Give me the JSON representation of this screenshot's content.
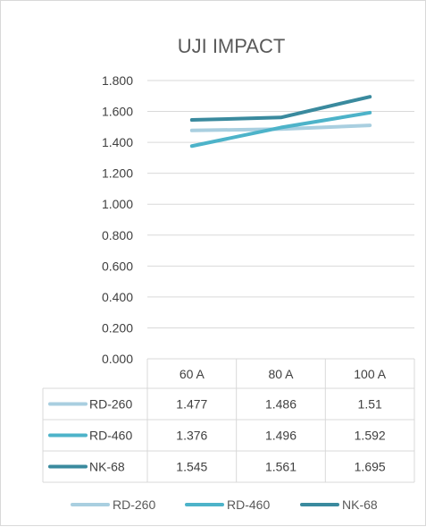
{
  "colors": {
    "RD-260": "#a9cfe0",
    "RD-460": "#4db3c9",
    "NK-68": "#3a8a9e",
    "grid": "#d9d9d9",
    "text": "#404040"
  },
  "chart_data": {
    "type": "line",
    "title": "UJI IMPACT",
    "categories": [
      "60 A",
      "80 A",
      "100 A"
    ],
    "ylim": [
      0,
      1.8
    ],
    "yticks": [
      "0.000",
      "0.200",
      "0.400",
      "0.600",
      "0.800",
      "1.000",
      "1.200",
      "1.400",
      "1.600",
      "1.800"
    ],
    "grid": true,
    "legend_position": "bottom",
    "data_table": true,
    "series": [
      {
        "name": "RD-260",
        "values": [
          1.477,
          1.486,
          1.51
        ],
        "labels": [
          "1.477",
          "1.486",
          "1.51"
        ]
      },
      {
        "name": "RD-460",
        "values": [
          1.376,
          1.496,
          1.592
        ],
        "labels": [
          "1.376",
          "1.496",
          "1.592"
        ]
      },
      {
        "name": "NK-68",
        "values": [
          1.545,
          1.561,
          1.695
        ],
        "labels": [
          "1.545",
          "1.561",
          "1.695"
        ]
      }
    ]
  }
}
